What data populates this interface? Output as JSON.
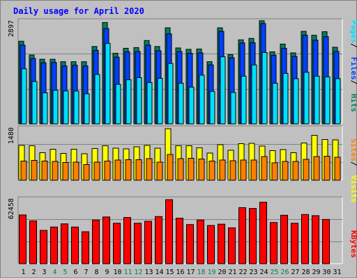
{
  "title": "Daily usage for April 2020",
  "colors": {
    "background": "#c0c0c0",
    "title": "#0000ff",
    "hits": "#00805c",
    "files": "#0040ff",
    "pages": "#00e0ff",
    "visits": "#ffff00",
    "sites": "#ff8000",
    "kbytes": "#ff0000",
    "weekend_label": "#00805c",
    "weekday_label": "#000000"
  },
  "chart_data": [
    {
      "type": "bar",
      "name": "hits-files-pages",
      "categories": [
        "1",
        "2",
        "3",
        "4",
        "5",
        "6",
        "7",
        "8",
        "9",
        "10",
        "11",
        "12",
        "13",
        "14",
        "15",
        "16",
        "17",
        "18",
        "19",
        "20",
        "21",
        "22",
        "23",
        "24",
        "25",
        "26",
        "27",
        "28",
        "29",
        "30",
        "31"
      ],
      "y_max_label": "2897",
      "y_max": 2897,
      "legend": [
        "Pages",
        "Files",
        "Hits"
      ],
      "series": [
        {
          "name": "Hits",
          "color": "#00805c",
          "values": [
            2340,
            1950,
            1830,
            1830,
            1760,
            1760,
            1760,
            2190,
            2870,
            2000,
            2140,
            2160,
            2360,
            2190,
            2720,
            2150,
            2110,
            2120,
            1760,
            2720,
            1960,
            2380,
            2420,
            2920,
            2040,
            2260,
            2010,
            2620,
            2510,
            2610,
            2170
          ]
        },
        {
          "name": "Files",
          "color": "#0040ff",
          "values": [
            2230,
            1850,
            1730,
            1740,
            1640,
            1660,
            1640,
            2080,
            2700,
            1890,
            2040,
            2050,
            2230,
            2070,
            2550,
            2050,
            2000,
            2010,
            1670,
            2620,
            1870,
            2290,
            2300,
            2840,
            1940,
            2140,
            1910,
            2510,
            2370,
            2470,
            2050
          ]
        },
        {
          "name": "Pages",
          "color": "#00e0ff",
          "values": [
            1560,
            1200,
            880,
            950,
            930,
            930,
            850,
            1400,
            2280,
            1120,
            1250,
            1310,
            1170,
            1290,
            1710,
            1150,
            1040,
            1380,
            920,
            1900,
            890,
            1350,
            1670,
            2020,
            1150,
            1430,
            1280,
            1460,
            1350,
            1330,
            1280
          ]
        }
      ]
    },
    {
      "type": "bar",
      "name": "visits-sites",
      "categories": [
        "1",
        "2",
        "3",
        "4",
        "5",
        "6",
        "7",
        "8",
        "9",
        "10",
        "11",
        "12",
        "13",
        "14",
        "15",
        "16",
        "17",
        "18",
        "19",
        "20",
        "21",
        "22",
        "23",
        "24",
        "25",
        "26",
        "27",
        "28",
        "29",
        "30",
        "31"
      ],
      "y_max_label": "1480",
      "y_max": 1480,
      "legend": [
        "Sites",
        "Visits"
      ],
      "series": [
        {
          "name": "Visits",
          "color": "#ffff00",
          "values": [
            1000,
            990,
            790,
            890,
            770,
            890,
            760,
            910,
            990,
            920,
            900,
            960,
            1000,
            920,
            1480,
            990,
            990,
            930,
            780,
            1020,
            860,
            1050,
            1060,
            980,
            850,
            880,
            790,
            1070,
            1290,
            1170,
            1160
          ]
        },
        {
          "name": "Sites",
          "color": "#ff8000",
          "values": [
            550,
            570,
            550,
            540,
            510,
            520,
            450,
            520,
            550,
            580,
            590,
            590,
            620,
            520,
            740,
            620,
            630,
            610,
            550,
            580,
            560,
            580,
            580,
            680,
            500,
            540,
            540,
            600,
            680,
            690,
            660
          ]
        }
      ]
    },
    {
      "type": "bar",
      "name": "kbytes",
      "categories": [
        "1",
        "2",
        "3",
        "4",
        "5",
        "6",
        "7",
        "8",
        "9",
        "10",
        "11",
        "12",
        "13",
        "14",
        "15",
        "16",
        "17",
        "18",
        "19",
        "20",
        "21",
        "22",
        "23",
        "24",
        "25",
        "26",
        "27",
        "28",
        "29",
        "30",
        "31"
      ],
      "y_max_label": "62458",
      "y_max": 62458,
      "legend": [
        "KBytes"
      ],
      "series": [
        {
          "name": "KBytes",
          "color": "#ff0000",
          "values": [
            47600,
            41800,
            32500,
            35800,
            38900,
            35800,
            31200,
            42600,
            45600,
            39500,
            45100,
            39500,
            41400,
            46000,
            62500,
            44400,
            38200,
            42600,
            37300,
            38600,
            35000,
            54700,
            53900,
            60000,
            40200,
            47300,
            39500,
            48000,
            46900,
            43200,
            0
          ]
        }
      ]
    }
  ],
  "weekend_days": [
    "4",
    "5",
    "11",
    "12",
    "18",
    "19",
    "25",
    "26"
  ]
}
